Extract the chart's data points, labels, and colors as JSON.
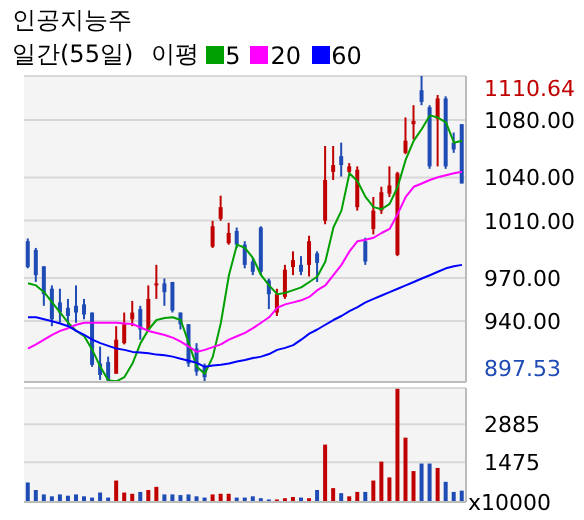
{
  "chart_data": [
    {
      "type": "candlestick",
      "title": "인공지능주",
      "subtitle": "일간(55일)",
      "legend_title": "이평",
      "legend": "top",
      "grid": "y",
      "tick_labels": "y",
      "marker": "none",
      "categories": [
        null,
        null,
        null,
        null,
        null,
        null,
        null,
        null,
        null,
        null,
        null,
        null,
        null,
        null,
        null,
        null,
        null,
        null,
        null,
        null,
        null,
        null,
        null,
        null,
        null,
        null,
        null,
        null,
        null,
        null,
        null,
        null,
        null,
        null,
        null,
        null,
        null,
        null,
        null,
        null,
        null,
        null,
        null,
        null,
        null,
        null,
        null,
        null,
        null,
        null,
        null,
        null,
        null,
        null,
        null
      ],
      "ohlc": [
        [
          995.6,
          997.5,
          976.7,
          977.6
        ],
        [
          989.5,
          990.9,
          967.2,
          972
        ],
        [
          978.1,
          978.1,
          950.6,
          958.7
        ],
        [
          962.5,
          964.8,
          936.4,
          941.2
        ],
        [
          953,
          962.5,
          938.8,
          945.9
        ],
        [
          949.2,
          955.4,
          936.4,
          943.5
        ],
        [
          950.6,
          964.8,
          938.8,
          945.9
        ],
        [
          951.6,
          955.4,
          941.2,
          944.5
        ],
        [
          945.9,
          945.9,
          908.1,
          909.5
        ],
        [
          910.4,
          922.2,
          899,
          902.4
        ],
        [
          911.4,
          915.2,
          897.53,
          898.6
        ],
        [
          903.3,
          936.4,
          903.3,
          927
        ],
        [
          924.6,
          945.9,
          923.7,
          937.8
        ],
        [
          941.2,
          954,
          936.4,
          945.9
        ],
        [
          948.3,
          950.6,
          927,
          934.1
        ],
        [
          934.1,
          964.8,
          933.1,
          955.4
        ],
        [
          964.8,
          979.1,
          955.4,
          966.2
        ],
        [
          966.2,
          969.6,
          950.6,
          960.1
        ],
        [
          967.2,
          967.2,
          945.9,
          947.3
        ],
        [
          945.9,
          945.9,
          934.1,
          937.8
        ],
        [
          937.8,
          937.8,
          908.1,
          910.4
        ],
        [
          920.8,
          924.6,
          901.9,
          904.7
        ],
        [
          908.1,
          910.4,
          898.2,
          900.9
        ],
        [
          991.8,
          1009.8,
          990.9,
          1006
        ],
        [
          1011.2,
          1027.3,
          1009.8,
          1019.3
        ],
        [
          994.2,
          1008.4,
          993.2,
          1001.3
        ],
        [
          1002.7,
          1005.1,
          990.9,
          993.2
        ],
        [
          993.2,
          995.6,
          976.7,
          979.1
        ],
        [
          981.4,
          983.8,
          972,
          974.3
        ],
        [
          1005.1,
          1006,
          972,
          974.3
        ],
        [
          968.2,
          969.6,
          948.3,
          958.7
        ],
        [
          945.9,
          962.5,
          943.5,
          958.7
        ],
        [
          956.8,
          979.1,
          955.4,
          975.7
        ],
        [
          977.6,
          988.5,
          972,
          982.4
        ],
        [
          979.1,
          985.2,
          972,
          974.3
        ],
        [
          979.1,
          999.4,
          971,
          995.6
        ],
        [
          987.1,
          988.5,
          967.2,
          980.5
        ],
        [
          1009.8,
          1061.9,
          1007.4,
          1038.2
        ],
        [
          1043.9,
          1061.9,
          1038.2,
          1048.6
        ],
        [
          1054.8,
          1064.2,
          1040.6,
          1048.6
        ],
        [
          1043.9,
          1050,
          1043,
          1047.7
        ],
        [
          1019.3,
          1047.7,
          1016.9,
          1045.3
        ],
        [
          995.6,
          998,
          979.1,
          981.4
        ],
        [
          1004.1,
          1026.4,
          1000.3,
          1016.9
        ],
        [
          1016.9,
          1033.5,
          1014.6,
          1029.7
        ],
        [
          1028.7,
          1047.7,
          1026.4,
          1034.4
        ],
        [
          986.1,
          1043.9,
          985.2,
          1042.9
        ],
        [
          1057.1,
          1081.8,
          1056.2,
          1065.6
        ],
        [
          1077.1,
          1090.3,
          1066.6,
          1079.4
        ],
        [
          1100.7,
          1110.64,
          1090.3,
          1092.6
        ],
        [
          1088.9,
          1090.3,
          1046,
          1047.7
        ],
        [
          1080.8,
          1097.4,
          1047.7,
          1095
        ],
        [
          1095,
          1096.5,
          1046,
          1047.7
        ],
        [
          1064.2,
          1071.3,
          1057.1,
          1059.5
        ],
        [
          1077.1,
          1077.1,
          1035.8,
          1035.8
        ]
      ],
      "colors": [
        "#1f4bb5",
        "#1f4bb5",
        "#1f4bb5",
        "#1f4bb5",
        "#1f4bb5",
        "#1f4bb5",
        "#1f4bb5",
        "#1f4bb5",
        "#1f4bb5",
        "#1f4bb5",
        "#1f4bb5",
        "#c00000",
        "#c00000",
        "#c00000",
        "#1f4bb5",
        "#c00000",
        "#c00000",
        "#1f4bb5",
        "#1f4bb5",
        "#1f4bb5",
        "#1f4bb5",
        "#1f4bb5",
        "#1f4bb5",
        "#c00000",
        "#c00000",
        "#c00000",
        "#1f4bb5",
        "#1f4bb5",
        "#1f4bb5",
        "#1f4bb5",
        "#1f4bb5",
        "#c00000",
        "#c00000",
        "#c00000",
        "#1f4bb5",
        "#c00000",
        "#1f4bb5",
        "#c00000",
        "#c00000",
        "#1f4bb5",
        "#c00000",
        "#c00000",
        "#1f4bb5",
        "#c00000",
        "#c00000",
        "#c00000",
        "#c00000",
        "#c00000",
        "#c00000",
        "#1f4bb5",
        "#1f4bb5",
        "#c00000",
        "#1f4bb5",
        "#1f4bb5",
        "#1f4bb5"
      ],
      "series": [
        {
          "type": "line",
          "name": "5",
          "color": "#00a000",
          "values": [
            966.3,
            964.8,
            960.1,
            953.0,
            945.9,
            938.8,
            933.1,
            929.4,
            919.9,
            908.1,
            898.6,
            898.0,
            901.0,
            910.4,
            924.6,
            934.1,
            940.7,
            942.1,
            942.6,
            940.7,
            924.6,
            908.1,
            903.3,
            915.2,
            938.8,
            971.9,
            993.2,
            990.9,
            983.8,
            971.9,
            964.8,
            958.7,
            959.6,
            961.5,
            963.4,
            967.2,
            971.0,
            981.4,
            1005.1,
            1016.9,
            1042.9,
            1037.3,
            1026.4,
            1019.3,
            1017.9,
            1021.6,
            1033.5,
            1052.4,
            1065.6,
            1073.7,
            1083.2,
            1081.7,
            1078.4,
            1064.2,
            1065.6
          ]
        },
        {
          "type": "line",
          "name": "20",
          "color": "#ff00ff",
          "values": [
            920.8,
            923.7,
            927.0,
            930.3,
            933.1,
            935.0,
            937.4,
            938.8,
            938.8,
            938.8,
            938.8,
            938.8,
            938.3,
            937.9,
            935.5,
            933.1,
            931.7,
            930.3,
            928.4,
            925.6,
            922.2,
            918.5,
            919.9,
            921.8,
            923.7,
            927.0,
            929.4,
            931.7,
            935.0,
            938.8,
            942.6,
            949.2,
            951.6,
            953.0,
            954.4,
            956.8,
            961.5,
            964.8,
            971.9,
            979.1,
            988.5,
            995.6,
            996.6,
            998.0,
            1001.3,
            1004.1,
            1014.6,
            1026.4,
            1033.5,
            1035.8,
            1038.2,
            1040.1,
            1041.5,
            1042.9,
            1043.9
          ]
        },
        {
          "type": "line",
          "name": "60",
          "color": "#0000ff",
          "values": [
            942.6,
            942.6,
            941.2,
            939.8,
            938.3,
            936.4,
            933.1,
            930.3,
            927.0,
            924.6,
            922.7,
            920.8,
            919.9,
            918.5,
            918.0,
            917.5,
            916.6,
            916.1,
            915.2,
            913.7,
            912.3,
            910.9,
            908.1,
            909.0,
            909.5,
            910.4,
            911.8,
            912.8,
            914.2,
            915.2,
            917.0,
            919.9,
            921.3,
            923.2,
            927.0,
            931.2,
            934.1,
            937.4,
            940.7,
            943.5,
            946.9,
            949.7,
            953.0,
            955.4,
            957.8,
            960.1,
            962.5,
            964.8,
            967.2,
            969.6,
            971.9,
            974.3,
            976.7,
            978.1,
            979.1
          ]
        }
      ],
      "ylim": [
        897.53,
        1110.64
      ],
      "yticks": [
        897.53,
        {
          "value": 940,
          "label": "940.00"
        },
        {
          "value": 970,
          "label": "970.00"
        },
        {
          "value": 1010,
          "label": "1010.00"
        },
        {
          "value": 1040,
          "label": "1040.00"
        },
        {
          "value": 1080,
          "label": "1080.00"
        },
        1110.64
      ]
    },
    {
      "type": "bar",
      "ylabel": "x10000",
      "grid": "y",
      "tick_labels": "y",
      "categories": [
        null,
        null,
        null,
        null,
        null,
        null,
        null,
        null,
        null,
        null,
        null,
        null,
        null,
        null,
        null,
        null,
        null,
        null,
        null,
        null,
        null,
        null,
        null,
        null,
        null,
        null,
        null,
        null,
        null,
        null,
        null,
        null,
        null,
        null,
        null,
        null,
        null,
        null,
        null,
        null,
        null,
        null,
        null,
        null,
        null,
        null,
        null,
        null,
        null,
        null,
        null,
        null,
        null,
        null,
        null
      ],
      "values": [
        725,
        445,
        281,
        211,
        281,
        234,
        281,
        211,
        164,
        351,
        164,
        796,
        351,
        304,
        374,
        445,
        562,
        281,
        281,
        257,
        281,
        211,
        164,
        281,
        304,
        304,
        164,
        164,
        211,
        140,
        94,
        94,
        140,
        187,
        164,
        140,
        445,
        2129,
        515,
        328,
        211,
        374,
        374,
        796,
        1498,
        913,
        4200,
        2387,
        1147,
        1427,
        1427,
        1264,
        749,
        374,
        421
      ],
      "colors": [
        "#1f4bb5",
        "#1f4bb5",
        "#1f4bb5",
        "#1f4bb5",
        "#1f4bb5",
        "#1f4bb5",
        "#1f4bb5",
        "#1f4bb5",
        "#1f4bb5",
        "#1f4bb5",
        "#1f4bb5",
        "#c00000",
        "#c00000",
        "#c00000",
        "#1f4bb5",
        "#c00000",
        "#c00000",
        "#1f4bb5",
        "#1f4bb5",
        "#1f4bb5",
        "#1f4bb5",
        "#1f4bb5",
        "#1f4bb5",
        "#c00000",
        "#c00000",
        "#c00000",
        "#1f4bb5",
        "#1f4bb5",
        "#1f4bb5",
        "#1f4bb5",
        "#1f4bb5",
        "#c00000",
        "#c00000",
        "#c00000",
        "#1f4bb5",
        "#c00000",
        "#1f4bb5",
        "#c00000",
        "#c00000",
        "#1f4bb5",
        "#c00000",
        "#c00000",
        "#1f4bb5",
        "#c00000",
        "#c00000",
        "#c00000",
        "#c00000",
        "#c00000",
        "#c00000",
        "#1f4bb5",
        "#1f4bb5",
        "#c00000",
        "#1f4bb5",
        "#1f4bb5",
        "#1f4bb5"
      ],
      "ylim": [
        0,
        4230
      ],
      "yticks": [
        1475,
        2885
      ]
    }
  ]
}
